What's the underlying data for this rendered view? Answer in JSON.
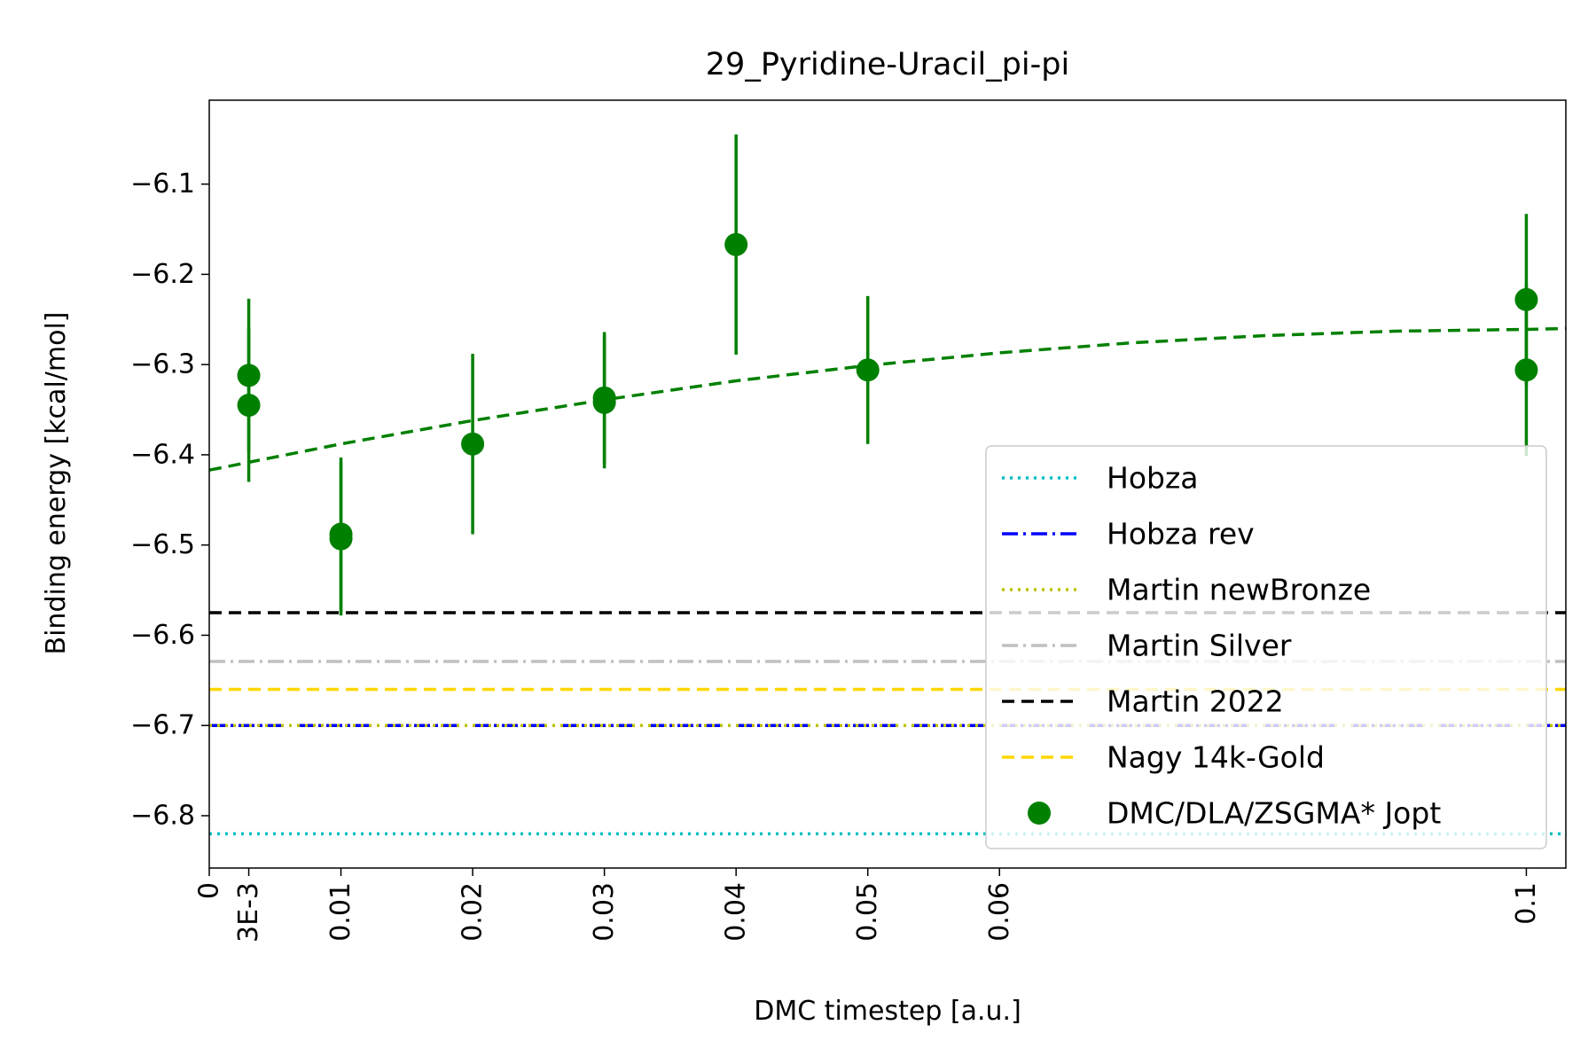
{
  "chart_data": {
    "type": "scatter",
    "title": "29_Pyridine-Uracil_pi-pi",
    "xlabel": "DMC timestep [a.u.]",
    "ylabel": "Binding energy [kcal/mol]",
    "xlim": [
      0,
      0.103
    ],
    "ylim": [
      -6.858,
      -6.007
    ],
    "x_ticks": [
      {
        "value": 0,
        "label": "0"
      },
      {
        "value": 0.003,
        "label": "3E-3"
      },
      {
        "value": 0.01,
        "label": "0.01"
      },
      {
        "value": 0.02,
        "label": "0.02"
      },
      {
        "value": 0.03,
        "label": "0.03"
      },
      {
        "value": 0.04,
        "label": "0.04"
      },
      {
        "value": 0.05,
        "label": "0.05"
      },
      {
        "value": 0.06,
        "label": "0.06"
      },
      {
        "value": 0.1,
        "label": "0.1"
      }
    ],
    "y_ticks": [
      {
        "value": -6.1,
        "label": "−6.1"
      },
      {
        "value": -6.2,
        "label": "−6.2"
      },
      {
        "value": -6.3,
        "label": "−6.3"
      },
      {
        "value": -6.4,
        "label": "−6.4"
      },
      {
        "value": -6.5,
        "label": "−6.5"
      },
      {
        "value": -6.6,
        "label": "−6.6"
      },
      {
        "value": -6.7,
        "label": "−6.7"
      },
      {
        "value": -6.8,
        "label": "−6.8"
      }
    ],
    "grid": false,
    "legend_position": "lower-right",
    "reference_lines": [
      {
        "name": "Hobza",
        "value": -6.82,
        "color": "#00bfbf",
        "style": "dotted"
      },
      {
        "name": "Hobza rev",
        "value": -6.7,
        "color": "#0000ff",
        "style": "dashdot"
      },
      {
        "name": "Martin newBronze",
        "value": -6.7,
        "color": "#bfbf00",
        "style": "dotted"
      },
      {
        "name": "Martin Silver",
        "value": -6.629,
        "color": "#c0c0c0",
        "style": "dashdot"
      },
      {
        "name": "Martin 2022",
        "value": -6.575,
        "color": "#000000",
        "style": "dashed"
      },
      {
        "name": "Nagy 14k-Gold",
        "value": -6.66,
        "color": "#ffd700",
        "style": "dashed"
      }
    ],
    "series": [
      {
        "name": "DMC/DLA/ZSGMA* Jopt",
        "color": "#008000",
        "points": [
          {
            "x": 0.003,
            "y": -6.312,
            "err": 0.085
          },
          {
            "x": 0.003,
            "y": -6.345,
            "err": 0.085
          },
          {
            "x": 0.01,
            "y": -6.488,
            "err": 0.085
          },
          {
            "x": 0.01,
            "y": -6.493,
            "err": 0.085
          },
          {
            "x": 0.02,
            "y": -6.388,
            "err": 0.1
          },
          {
            "x": 0.03,
            "y": -6.337,
            "err": 0.073
          },
          {
            "x": 0.03,
            "y": -6.342,
            "err": 0.073
          },
          {
            "x": 0.04,
            "y": -6.167,
            "err": 0.122
          },
          {
            "x": 0.05,
            "y": -6.306,
            "err": 0.082
          },
          {
            "x": 0.1,
            "y": -6.228,
            "err": 0.095
          },
          {
            "x": 0.1,
            "y": -6.306,
            "err": 0.095
          }
        ]
      }
    ],
    "fit_curve": {
      "color": "#008000",
      "style": "dashed",
      "points": [
        {
          "x": 0.0,
          "y": -6.417
        },
        {
          "x": 0.01,
          "y": -6.388
        },
        {
          "x": 0.02,
          "y": -6.362
        },
        {
          "x": 0.03,
          "y": -6.339
        },
        {
          "x": 0.04,
          "y": -6.318
        },
        {
          "x": 0.05,
          "y": -6.301
        },
        {
          "x": 0.06,
          "y": -6.287
        },
        {
          "x": 0.07,
          "y": -6.276
        },
        {
          "x": 0.08,
          "y": -6.268
        },
        {
          "x": 0.09,
          "y": -6.263
        },
        {
          "x": 0.1,
          "y": -6.261
        },
        {
          "x": 0.103,
          "y": -6.26
        }
      ]
    }
  }
}
